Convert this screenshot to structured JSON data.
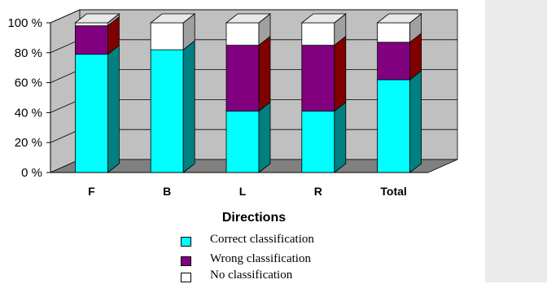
{
  "chart_data": {
    "type": "bar",
    "stacked": true,
    "three_d": true,
    "categories": [
      "F",
      "B",
      "L",
      "R",
      "Total"
    ],
    "series": [
      {
        "name": "Correct classification",
        "values": [
          79,
          82,
          41,
          41,
          62
        ],
        "color": "#00ffff",
        "side_color": "#008080"
      },
      {
        "name": "Wrong classification",
        "values": [
          19,
          0,
          44,
          44,
          25
        ],
        "color": "#800080",
        "side_color": "#800000"
      },
      {
        "name": "No classification",
        "values": [
          2,
          18,
          15,
          15,
          13
        ],
        "color": "#ffffff",
        "side_color": "#a0a0a0"
      }
    ],
    "y_ticks": [
      "0 %",
      "20 %",
      "40 %",
      "60 %",
      "80 %",
      "100 %"
    ],
    "ylim": [
      0,
      100
    ],
    "xlabel": "Directions",
    "ylabel": "",
    "title": "",
    "grid": true,
    "legend_position": "bottom-center",
    "wall_color": "#c0c0c0",
    "floor_color": "#808080"
  }
}
